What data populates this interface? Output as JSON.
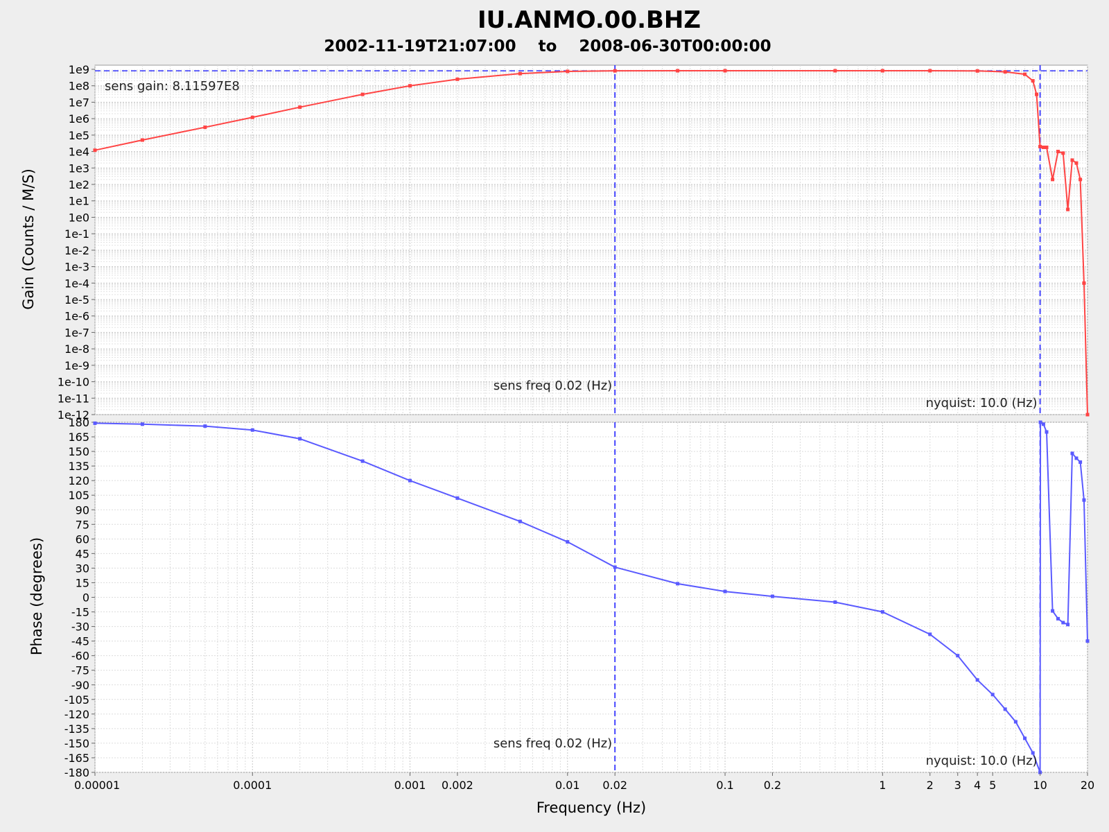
{
  "chart_data": [
    {
      "panel": "gain",
      "type": "line",
      "title": "IU.ANMO.00.BHZ",
      "subtitle": "2002-11-19T21:07:00    to    2008-06-30T00:00:00",
      "xlabel": "Frequency (Hz)",
      "ylabel": "Gain (Counts / M/S)",
      "xscale": "log",
      "yscale": "log",
      "xlim": [
        1e-05,
        20
      ],
      "ylim": [
        1e-12,
        1000000000.0
      ],
      "y_tick_labels": [
        "1e9",
        "1e8",
        "1e7",
        "1e6",
        "1e5",
        "1e4",
        "1e3",
        "1e2",
        "1e1",
        "1e0",
        "1e-1",
        "1e-2",
        "1e-3",
        "1e-4",
        "1e-5",
        "1e-6",
        "1e-7",
        "1e-8",
        "1e-9",
        "1e-10",
        "1e-11",
        "1e-12"
      ],
      "grid": true,
      "line_color": "#ff4444",
      "sens_gain_label": "sens gain: 8.11597E8",
      "sens_freq_label": "sens freq 0.02 (Hz)",
      "nyquist_label": "nyquist: 10.0 (Hz)",
      "reference_gain": 811597000.0,
      "sens_freq": 0.02,
      "nyquist": 10,
      "x": [
        1e-05,
        2e-05,
        5e-05,
        0.0001,
        0.0002,
        0.0005,
        0.001,
        0.002,
        0.005,
        0.01,
        0.02,
        0.05,
        0.1,
        0.5,
        1,
        2,
        4,
        6,
        8,
        9,
        9.5,
        10,
        10.5,
        11,
        12,
        13,
        14,
        15,
        16,
        17,
        18,
        19,
        20
      ],
      "y": [
        12000.0,
        50000.0,
        300000.0,
        1200000.0,
        5000000.0,
        30000000.0,
        100000000.0,
        250000000.0,
        550000000.0,
        750000000.0,
        810000000.0,
        820000000.0,
        820000000.0,
        820000000.0,
        820000000.0,
        820000000.0,
        800000000.0,
        700000000.0,
        500000000.0,
        200000000.0,
        30000000.0,
        20000.0,
        18000.0,
        18000.0,
        200.0,
        10000.0,
        8000.0,
        3,
        3000.0,
        2000.0,
        200.0,
        0.0001,
        1e-12
      ]
    },
    {
      "panel": "phase",
      "type": "line",
      "xlabel": "Frequency (Hz)",
      "ylabel": "Phase (degrees)",
      "xscale": "log",
      "xlim": [
        1e-05,
        20
      ],
      "ylim": [
        -180,
        180
      ],
      "y_ticks": [
        180,
        165,
        150,
        135,
        120,
        105,
        90,
        75,
        60,
        45,
        30,
        15,
        0,
        -15,
        -30,
        -45,
        -60,
        -75,
        -90,
        -105,
        -120,
        -135,
        -150,
        -165,
        -180
      ],
      "x_ticks": [
        1e-05,
        0.0001,
        0.001,
        0.002,
        0.01,
        0.02,
        0.1,
        0.2,
        1,
        2,
        3,
        4,
        5,
        10,
        20
      ],
      "x_tick_labels": [
        "0.00001",
        "0.0001",
        "0.001",
        "0.002",
        "0.01",
        "0.02",
        "0.1",
        "0.2",
        "1",
        "2",
        "3",
        "4",
        "5",
        "10",
        "20"
      ],
      "grid": true,
      "line_color": "#5a5aff",
      "sens_freq_label": "sens freq 0.02 (Hz)",
      "nyquist_label": "nyquist: 10.0 (Hz)",
      "sens_freq": 0.02,
      "nyquist": 10,
      "x": [
        1e-05,
        2e-05,
        5e-05,
        0.0001,
        0.0002,
        0.0005,
        0.001,
        0.002,
        0.005,
        0.01,
        0.02,
        0.05,
        0.1,
        0.2,
        0.5,
        1,
        2,
        3,
        4,
        5,
        6,
        7,
        8,
        9,
        10,
        10.05,
        10.5,
        11,
        12,
        13,
        14,
        15,
        16,
        17,
        18,
        19,
        20
      ],
      "y": [
        179,
        178,
        176,
        172,
        163,
        140,
        120,
        102,
        78,
        57,
        31,
        14,
        6,
        1,
        -5,
        -15,
        -38,
        -60,
        -85,
        -100,
        -115,
        -128,
        -145,
        -160,
        -180,
        180,
        178,
        170,
        -14,
        -22,
        -26,
        -28,
        148,
        143,
        139,
        100,
        -45
      ]
    }
  ]
}
